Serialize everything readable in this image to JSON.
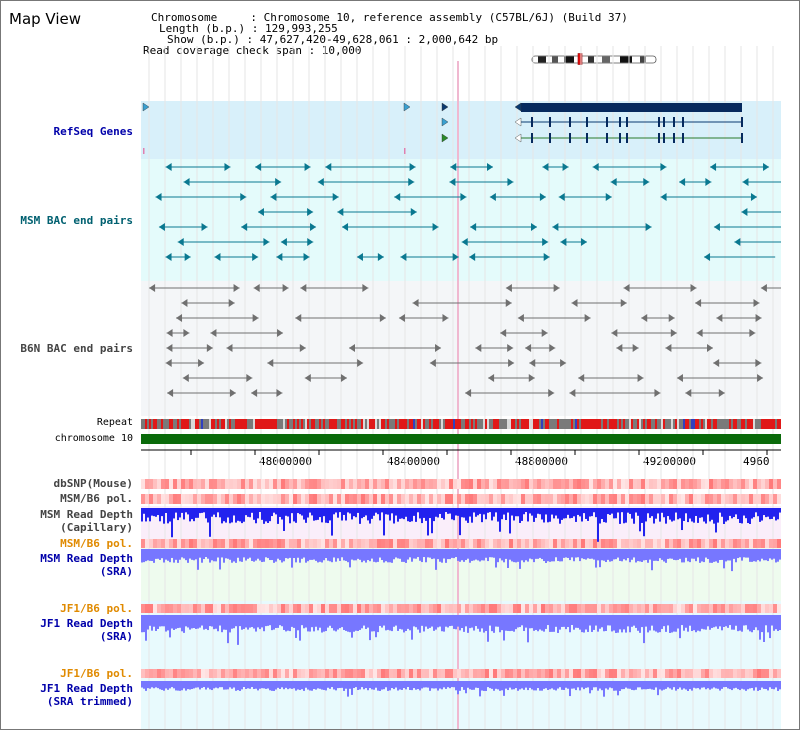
{
  "title": "Map View",
  "info": {
    "chromosome_line": "Chromosome     : Chromosome 10, reference assembly (C57BL/6J) (Build 37)",
    "length_line": "Length (b.p.) : 129,993,255",
    "show_line": "Show (b.p.) : 47,627,420-49,628,061 : 2,000,642 bp",
    "span_line": "Read coverage check span : 10,000"
  },
  "labels": {
    "refseq": "RefSeq Genes",
    "msm_bac": "MSM BAC end pairs",
    "b6n_bac": "B6N BAC end pairs",
    "repeat": "Repeat",
    "chromosome": "chromosome 10",
    "dbsnp": "dbSNP(Mouse)",
    "msm_b6_pol": "MSM/B6 pol.",
    "msm_depth_cap_1": "MSM Read Depth",
    "msm_depth_cap_2": "(Capillary)",
    "msm_b6_pol2": "MSM/B6 pol.",
    "msm_depth_sra_1": "MSM Read Depth",
    "msm_depth_sra_2": "(SRA)",
    "jf1_b6_pol": "JF1/B6 pol.",
    "jf1_depth_sra_1": "JF1 Read Depth",
    "jf1_depth_sra_2": "(SRA)",
    "jf1_b6_pol2": "JF1/B6 pol.",
    "jf1_depth_trim_1": "JF1 Read Depth",
    "jf1_depth_trim_2": "(SRA trimmed)"
  },
  "axis": {
    "ticks": [
      "48000000",
      "48400000",
      "48800000",
      "49200000",
      "4960"
    ]
  },
  "colors": {
    "refseq_bg": "#d8f0fa",
    "msm_bg": "#e4fbfb",
    "b6n_bg": "#f4f6f8",
    "gene_bar": "#062a5e",
    "chromosome": "#0a6a0a",
    "msm_feature": "#0a7890",
    "b6n_feature": "#707070",
    "depth_blue": "#2222ee",
    "depth_light": "#7777ff"
  }
}
